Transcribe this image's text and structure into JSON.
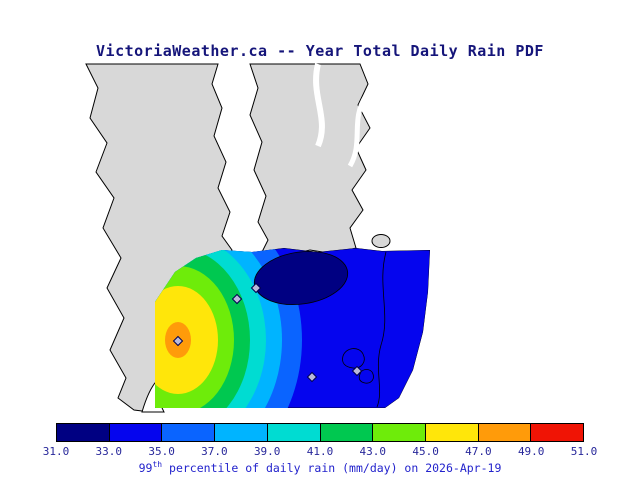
{
  "title": "VictoriaWeather.ca -- Year Total Daily Rain PDF",
  "theme": {
    "title-color": "#15157a",
    "tick-color": "#27279a",
    "caption-color": "#2323cc",
    "land": "#d8d8d8",
    "coast": "#000000",
    "water": "#ffffff",
    "marker-fill": "#b9b9da",
    "marker-stroke": "#000050"
  },
  "colorbar": {
    "ticks": [
      "31.0",
      "33.0",
      "35.0",
      "37.0",
      "39.0",
      "41.0",
      "43.0",
      "45.0",
      "47.0",
      "49.0",
      "51.0"
    ],
    "colors": [
      "#000082",
      "#0505ee",
      "#0a64ff",
      "#00b4ff",
      "#00dcd2",
      "#00c850",
      "#6eec0a",
      "#ffe60a",
      "#ff9b0a",
      "#f01405"
    ],
    "caption_num": "99",
    "caption_sup": "th",
    "caption_rest": " percentile of daily rain (mm/day) on 2026-Apr-19"
  },
  "map_data": {
    "type": "filled-contour-map",
    "units": "mm/day",
    "levels": [
      31,
      33,
      35,
      37,
      39,
      41,
      43,
      45,
      47,
      49,
      51
    ],
    "percentile": "99th",
    "date": "2026-Apr-19",
    "value_min_band": "31-33",
    "value_max_band": "47-49"
  }
}
